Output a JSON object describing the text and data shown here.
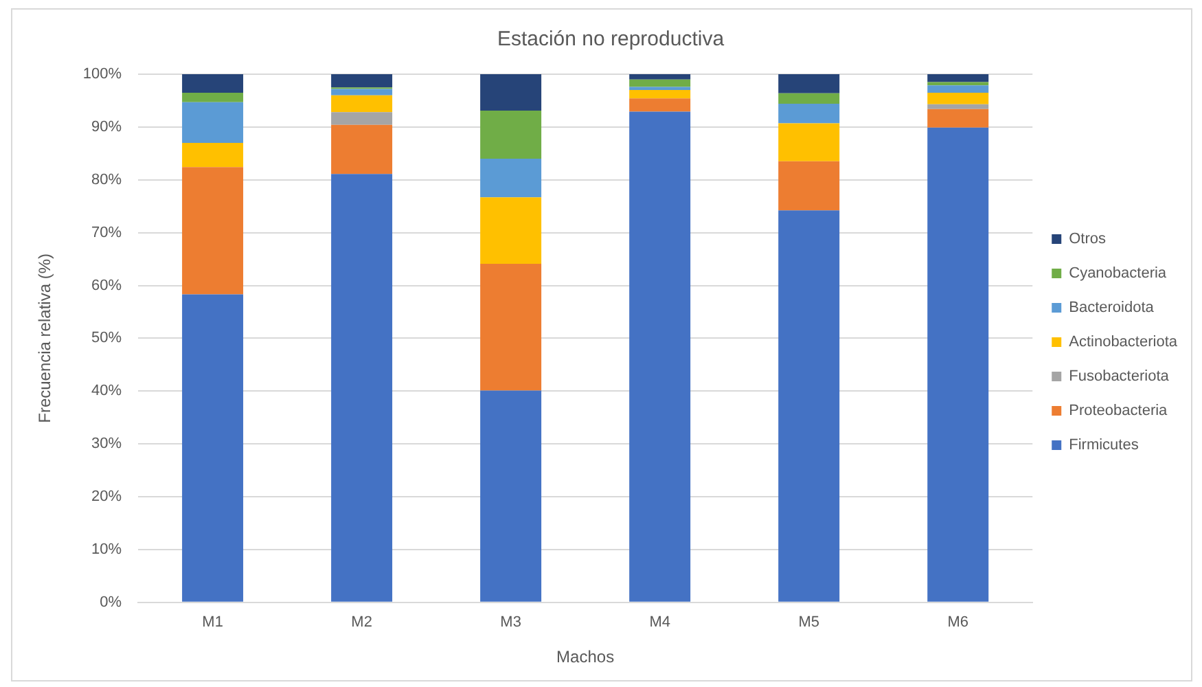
{
  "chart_data": {
    "type": "bar",
    "title": "Estación no reproductiva",
    "xlabel": "Machos",
    "ylabel": "Frecuencia relativa (%)",
    "categories": [
      "M1",
      "M2",
      "M3",
      "M4",
      "M5",
      "M6"
    ],
    "stacked": true,
    "series": [
      {
        "name": "Firmicutes",
        "color": "#4472c4",
        "values": [
          58.3,
          81.1,
          40.1,
          92.9,
          74.2,
          89.9
        ]
      },
      {
        "name": "Proteobacteria",
        "color": "#ed7d31",
        "values": [
          24.1,
          9.3,
          24.0,
          2.5,
          9.3,
          3.5
        ]
      },
      {
        "name": "Fusobacteriota",
        "color": "#a5a5a5",
        "values": [
          0,
          2.4,
          0,
          0,
          0,
          0.9
        ]
      },
      {
        "name": "Actinobacteriota",
        "color": "#ffc000",
        "values": [
          4.6,
          3.2,
          12.6,
          1.6,
          7.2,
          2.2
        ]
      },
      {
        "name": "Bacteroidota",
        "color": "#5b9bd5",
        "values": [
          7.7,
          1.2,
          7.3,
          0.6,
          3.7,
          1.4
        ]
      },
      {
        "name": "Cyanobacteria",
        "color": "#70ad47",
        "values": [
          1.8,
          0.3,
          9.1,
          1.4,
          2.0,
          0.6
        ]
      },
      {
        "name": "Otros",
        "color": "#264478",
        "values": [
          3.5,
          2.5,
          6.9,
          1.0,
          3.6,
          1.5
        ]
      }
    ],
    "ylim": [
      0,
      100
    ],
    "yticks": [
      {
        "value": 0,
        "label": "0%"
      },
      {
        "value": 10,
        "label": "10%"
      },
      {
        "value": 20,
        "label": "20%"
      },
      {
        "value": 30,
        "label": "30%"
      },
      {
        "value": 40,
        "label": "40%"
      },
      {
        "value": 50,
        "label": "50%"
      },
      {
        "value": 60,
        "label": "60%"
      },
      {
        "value": 70,
        "label": "70%"
      },
      {
        "value": 80,
        "label": "80%"
      },
      {
        "value": 90,
        "label": "90%"
      },
      {
        "value": 100,
        "label": "100%"
      }
    ],
    "grid": "y",
    "legend": "right"
  }
}
